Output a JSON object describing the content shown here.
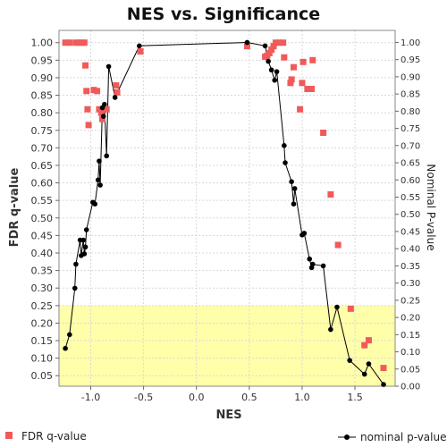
{
  "chart_data": {
    "type": "scatter",
    "title": "NES vs. Significance",
    "xlabel": "NES",
    "ylabel": "FDR q-value",
    "y2label": "Nominal P-value",
    "xlim": [
      -1.3,
      1.88
    ],
    "ylim": [
      0.02,
      1.035
    ],
    "y2lim": [
      0.0,
      1.035
    ],
    "xticks": [
      "-1.0",
      "-0.5",
      "0.0",
      "0.5",
      "1.0",
      "1.5"
    ],
    "xtick_values": [
      -1.0,
      -0.5,
      0.0,
      0.5,
      1.0,
      1.5
    ],
    "yticks": [
      "0.05",
      "0.10",
      "0.15",
      "0.20",
      "0.25",
      "0.30",
      "0.35",
      "0.40",
      "0.45",
      "0.50",
      "0.55",
      "0.60",
      "0.65",
      "0.70",
      "0.75",
      "0.80",
      "0.85",
      "0.90",
      "0.95",
      "1.00"
    ],
    "ytick_values": [
      0.05,
      0.1,
      0.15,
      0.2,
      0.25,
      0.3,
      0.35,
      0.4,
      0.45,
      0.5,
      0.55,
      0.6,
      0.65,
      0.7,
      0.75,
      0.8,
      0.85,
      0.9,
      0.95,
      1.0
    ],
    "y2ticks": [
      "0.00",
      "0.05",
      "0.10",
      "0.15",
      "0.20",
      "0.25",
      "0.30",
      "0.35",
      "0.40",
      "0.45",
      "0.50",
      "0.55",
      "0.60",
      "0.65",
      "0.70",
      "0.75",
      "0.80",
      "0.85",
      "0.90",
      "0.95",
      "1.00"
    ],
    "y2tick_values": [
      0.0,
      0.05,
      0.1,
      0.15,
      0.2,
      0.25,
      0.3,
      0.35,
      0.4,
      0.45,
      0.5,
      0.55,
      0.6,
      0.65,
      0.7,
      0.75,
      0.8,
      0.85,
      0.9,
      0.95,
      1.0
    ],
    "significance_band": {
      "from": 0.02,
      "to": 0.25,
      "color": "#ffffaa"
    },
    "grid": true,
    "legend_position": "bottom",
    "series": [
      {
        "name": "FDR q-value",
        "axis": "left",
        "marker": "square",
        "color": "#f05a5a",
        "points": [
          [
            -1.24,
            1.0
          ],
          [
            -1.2,
            1.0
          ],
          [
            -1.14,
            1.0
          ],
          [
            -1.11,
            1.0
          ],
          [
            -1.08,
            1.0
          ],
          [
            -1.06,
            1.0
          ],
          [
            -1.05,
            0.935
          ],
          [
            -1.04,
            0.862
          ],
          [
            -1.03,
            0.81
          ],
          [
            -1.02,
            0.765
          ],
          [
            -0.97,
            0.865
          ],
          [
            -0.94,
            0.862
          ],
          [
            -0.92,
            0.81
          ],
          [
            -0.9,
            0.8
          ],
          [
            -0.89,
            0.782
          ],
          [
            -0.85,
            0.81
          ],
          [
            -0.76,
            0.878
          ],
          [
            -0.75,
            0.858
          ],
          [
            -0.53,
            0.975
          ],
          [
            0.48,
            0.99
          ],
          [
            0.65,
            0.96
          ],
          [
            0.67,
            0.963
          ],
          [
            0.69,
            0.97
          ],
          [
            0.71,
            0.98
          ],
          [
            0.73,
            0.99
          ],
          [
            0.75,
            1.0
          ],
          [
            0.78,
            1.0
          ],
          [
            0.82,
            1.0
          ],
          [
            0.83,
            0.958
          ],
          [
            0.89,
            0.885
          ],
          [
            0.9,
            0.895
          ],
          [
            0.92,
            0.93
          ],
          [
            0.98,
            0.81
          ],
          [
            1.0,
            0.885
          ],
          [
            1.01,
            0.945
          ],
          [
            1.05,
            0.868
          ],
          [
            1.09,
            0.868
          ],
          [
            1.1,
            0.95
          ],
          [
            1.2,
            0.743
          ],
          [
            1.27,
            0.567
          ],
          [
            1.34,
            0.423
          ],
          [
            1.46,
            0.241
          ],
          [
            1.59,
            0.137
          ],
          [
            1.63,
            0.151
          ],
          [
            1.77,
            0.072
          ]
        ]
      },
      {
        "name": "nominal p-value",
        "axis": "right",
        "marker": "circle-line",
        "color": "#000000",
        "points": [
          [
            -1.24,
            0.11
          ],
          [
            -1.2,
            0.15
          ],
          [
            -1.15,
            0.285
          ],
          [
            -1.14,
            0.355
          ],
          [
            -1.1,
            0.425
          ],
          [
            -1.09,
            0.38
          ],
          [
            -1.07,
            0.425
          ],
          [
            -1.06,
            0.385
          ],
          [
            -1.05,
            0.405
          ],
          [
            -1.04,
            0.455
          ],
          [
            -0.98,
            0.535
          ],
          [
            -0.96,
            0.53
          ],
          [
            -0.93,
            0.6
          ],
          [
            -0.92,
            0.655
          ],
          [
            -0.91,
            0.585
          ],
          [
            -0.89,
            0.81
          ],
          [
            -0.88,
            0.785
          ],
          [
            -0.87,
            0.82
          ],
          [
            -0.85,
            0.67
          ],
          [
            -0.83,
            0.93
          ],
          [
            -0.77,
            0.84
          ],
          [
            -0.54,
            0.99
          ],
          [
            0.48,
            1.0
          ],
          [
            0.65,
            0.99
          ],
          [
            0.68,
            0.945
          ],
          [
            0.71,
            0.92
          ],
          [
            0.74,
            0.89
          ],
          [
            0.76,
            0.915
          ],
          [
            0.83,
            0.7
          ],
          [
            0.84,
            0.65
          ],
          [
            0.9,
            0.595
          ],
          [
            0.92,
            0.53
          ],
          [
            0.93,
            0.575
          ],
          [
            1.0,
            0.44
          ],
          [
            1.02,
            0.445
          ],
          [
            1.07,
            0.37
          ],
          [
            1.09,
            0.345
          ],
          [
            1.1,
            0.355
          ],
          [
            1.2,
            0.35
          ],
          [
            1.27,
            0.165
          ],
          [
            1.33,
            0.23
          ],
          [
            1.45,
            0.075
          ],
          [
            1.59,
            0.035
          ],
          [
            1.63,
            0.065
          ],
          [
            1.77,
            0.005
          ]
        ]
      }
    ]
  }
}
